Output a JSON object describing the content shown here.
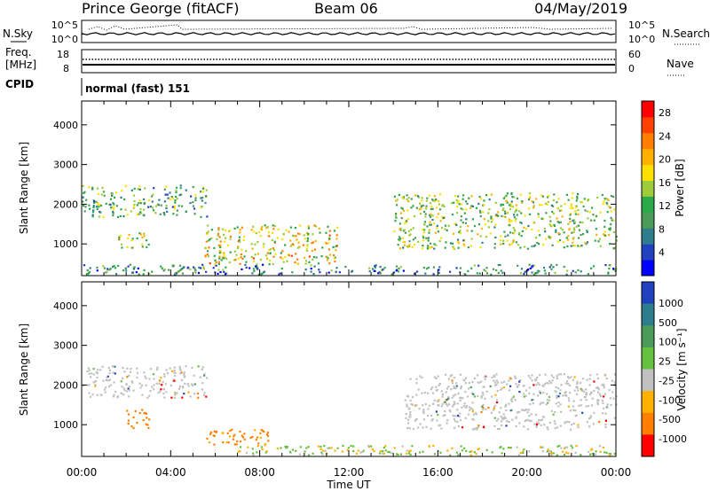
{
  "header": {
    "station": "Prince George (fitACF)",
    "beam": "Beam 06",
    "date": "04/May/2019"
  },
  "nsky_panel": {
    "label": "N.Sky",
    "left_ticks": [
      "10^5",
      "10^0"
    ],
    "right_ticks": [
      "10^5",
      "10^0"
    ],
    "right_label": "N.Search"
  },
  "freq_panel": {
    "label_line1": "Freq.",
    "label_line2": "[MHz]",
    "left_ticks": [
      "18",
      "8"
    ],
    "right_ticks": [
      "60",
      "0"
    ],
    "right_label": "Nave"
  },
  "cpid": {
    "label": "CPID",
    "value": "normal (fast) 151"
  },
  "time_axis": {
    "label": "Time UT",
    "ticks": [
      "00:00",
      "04:00",
      "08:00",
      "12:00",
      "16:00",
      "20:00",
      "00:00"
    ]
  },
  "chart_data": [
    {
      "type": "heatmap",
      "title": "",
      "xlabel": "Time UT",
      "ylabel": "Slant Range [km]",
      "x_range_hours": [
        0,
        24
      ],
      "ylim": [
        200,
        4600
      ],
      "y_ticks": [
        1000,
        2000,
        3000,
        4000
      ],
      "colorbar": {
        "label": "Power [dB]",
        "ticks": [
          "28",
          "24",
          "20",
          "16",
          "12",
          "8",
          "4"
        ],
        "range": [
          0,
          30
        ],
        "colors": [
          "#0000ff",
          "#2040c0",
          "#2e7d8c",
          "#4c9a5a",
          "#2aa84a",
          "#9ccc3a",
          "#ffe000",
          "#ffb000",
          "#ff8000",
          "#ff4000",
          "#ff0000"
        ]
      },
      "features": [
        {
          "name": "backscatter-band-a",
          "x_hours": [
            0.0,
            5.6
          ],
          "range_km": [
            1700,
            2500
          ],
          "value": 12
        },
        {
          "name": "backscatter-band-b",
          "x_hours": [
            1.5,
            3.0
          ],
          "range_km": [
            900,
            1300
          ],
          "value": 16
        },
        {
          "name": "patch-early-morning",
          "x_hours": [
            5.5,
            11.5
          ],
          "range_km": [
            500,
            1500
          ],
          "value": 18
        },
        {
          "name": "band-afternoon",
          "x_hours": [
            14.0,
            24.0
          ],
          "range_km": [
            900,
            2300
          ],
          "value": 14
        },
        {
          "name": "ground-scatter-floor",
          "x_hours": [
            0.0,
            24.0
          ],
          "range_km": [
            250,
            500
          ],
          "value": 8
        }
      ]
    },
    {
      "type": "heatmap",
      "title": "",
      "xlabel": "Time UT",
      "ylabel": "Slant Range [km]",
      "x_range_hours": [
        0,
        24
      ],
      "ylim": [
        200,
        4600
      ],
      "y_ticks": [
        1000,
        2000,
        3000,
        4000
      ],
      "colorbar": {
        "label": "Velocity [m s⁻¹]",
        "ticks": [
          "1000",
          "500",
          "100",
          "25",
          "-25",
          "-100",
          "-500",
          "-1000"
        ],
        "colors": [
          "#2040c0",
          "#2e7d8c",
          "#4c9a5a",
          "#66c040",
          "#c0c0c0",
          "#ffb000",
          "#ff8000",
          "#ff0000"
        ]
      },
      "features": [
        {
          "name": "ground-scatter-band-a",
          "x_hours": [
            0.0,
            5.6
          ],
          "range_km": [
            1700,
            2500
          ],
          "value": 0
        },
        {
          "name": "negative-velocity-patch",
          "x_hours": [
            2.0,
            3.0
          ],
          "range_km": [
            900,
            1400
          ],
          "value": -300
        },
        {
          "name": "morning-patch",
          "x_hours": [
            5.5,
            8.5
          ],
          "range_km": [
            500,
            900
          ],
          "value": -200
        },
        {
          "name": "afternoon-ground-scatter",
          "x_hours": [
            14.5,
            24.0
          ],
          "range_km": [
            900,
            2300
          ],
          "value": 0
        },
        {
          "name": "low-range-irregularities",
          "x_hours": [
            7.0,
            24.0
          ],
          "range_km": [
            250,
            500
          ],
          "value": 100
        }
      ]
    }
  ]
}
